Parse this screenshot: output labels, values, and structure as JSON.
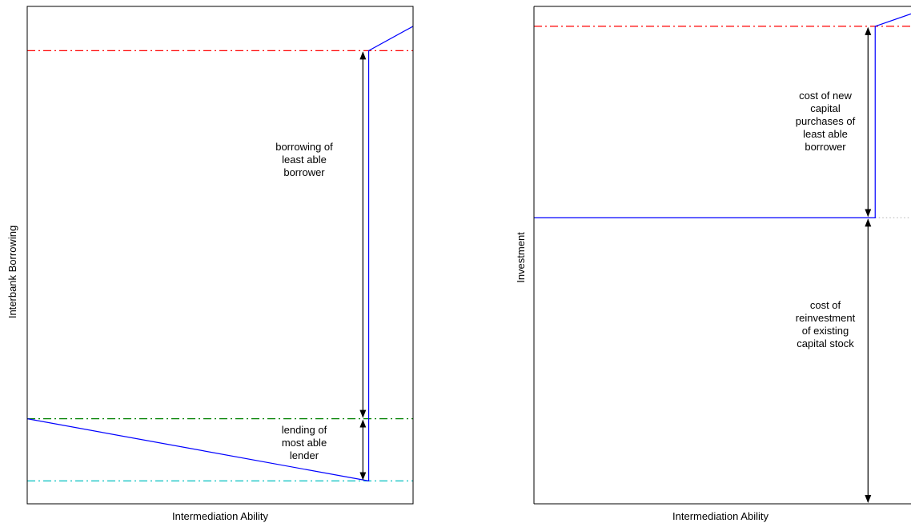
{
  "chart_data": [
    {
      "type": "line",
      "xlabel": "Intermediation Ability",
      "ylabel": "Interbank Borrowing",
      "xlim": [
        0,
        1
      ],
      "ylim": [
        0,
        1
      ],
      "grid": false,
      "legend": "none",
      "series": [
        {
          "color": "#0000ff",
          "style": "solid",
          "x": [
            0,
            0.885,
            0.885,
            1
          ],
          "y": [
            0.171,
            0.046,
            0.911,
            0.96
          ]
        },
        {
          "color": "#ff0000",
          "style": "dashdot",
          "x": [
            0,
            1
          ],
          "y": [
            0.911,
            0.911
          ]
        },
        {
          "color": "#008000",
          "style": "dashdot",
          "x": [
            0,
            1
          ],
          "y": [
            0.171,
            0.171
          ]
        },
        {
          "color": "#00bfbf",
          "style": "dashdot",
          "x": [
            0,
            1
          ],
          "y": [
            0.046,
            0.046
          ]
        }
      ],
      "annotations": [
        {
          "lines": [
            "borrowing of",
            "least able",
            "borrower"
          ],
          "arrow": {
            "x": 0.87,
            "y0": 0.911,
            "y1": 0.171
          }
        },
        {
          "lines": [
            "lending of",
            "most able",
            "lender"
          ],
          "arrow": {
            "x": 0.87,
            "y0": 0.171,
            "y1": 0.046
          }
        }
      ]
    },
    {
      "type": "line",
      "xlabel": "Intermediation Ability",
      "ylabel": "Investment",
      "xlim": [
        0,
        1
      ],
      "ylim": [
        0,
        1
      ],
      "grid": false,
      "legend": "none",
      "series": [
        {
          "color": "#0000ff",
          "style": "solid",
          "x": [
            0,
            0.905,
            0.905,
            1
          ],
          "y": [
            0.575,
            0.575,
            0.96,
            0.985
          ]
        },
        {
          "color": "#ff0000",
          "style": "dashdot",
          "x": [
            0,
            1
          ],
          "y": [
            0.96,
            0.96
          ]
        },
        {
          "color": "#c0c0c0",
          "style": "dotted",
          "x": [
            0.905,
            1
          ],
          "y": [
            0.575,
            0.575
          ]
        }
      ],
      "annotations": [
        {
          "lines": [
            "cost of new",
            "capital",
            "purchases of",
            "least able",
            "borrower"
          ],
          "arrow": {
            "x": 0.886,
            "y0": 0.96,
            "y1": 0.575
          }
        },
        {
          "lines": [
            "cost of",
            "reinvestment",
            "of existing",
            "capital stock"
          ],
          "arrow": {
            "x": 0.886,
            "y0": 0.575,
            "y1": 0.0
          }
        }
      ]
    }
  ]
}
